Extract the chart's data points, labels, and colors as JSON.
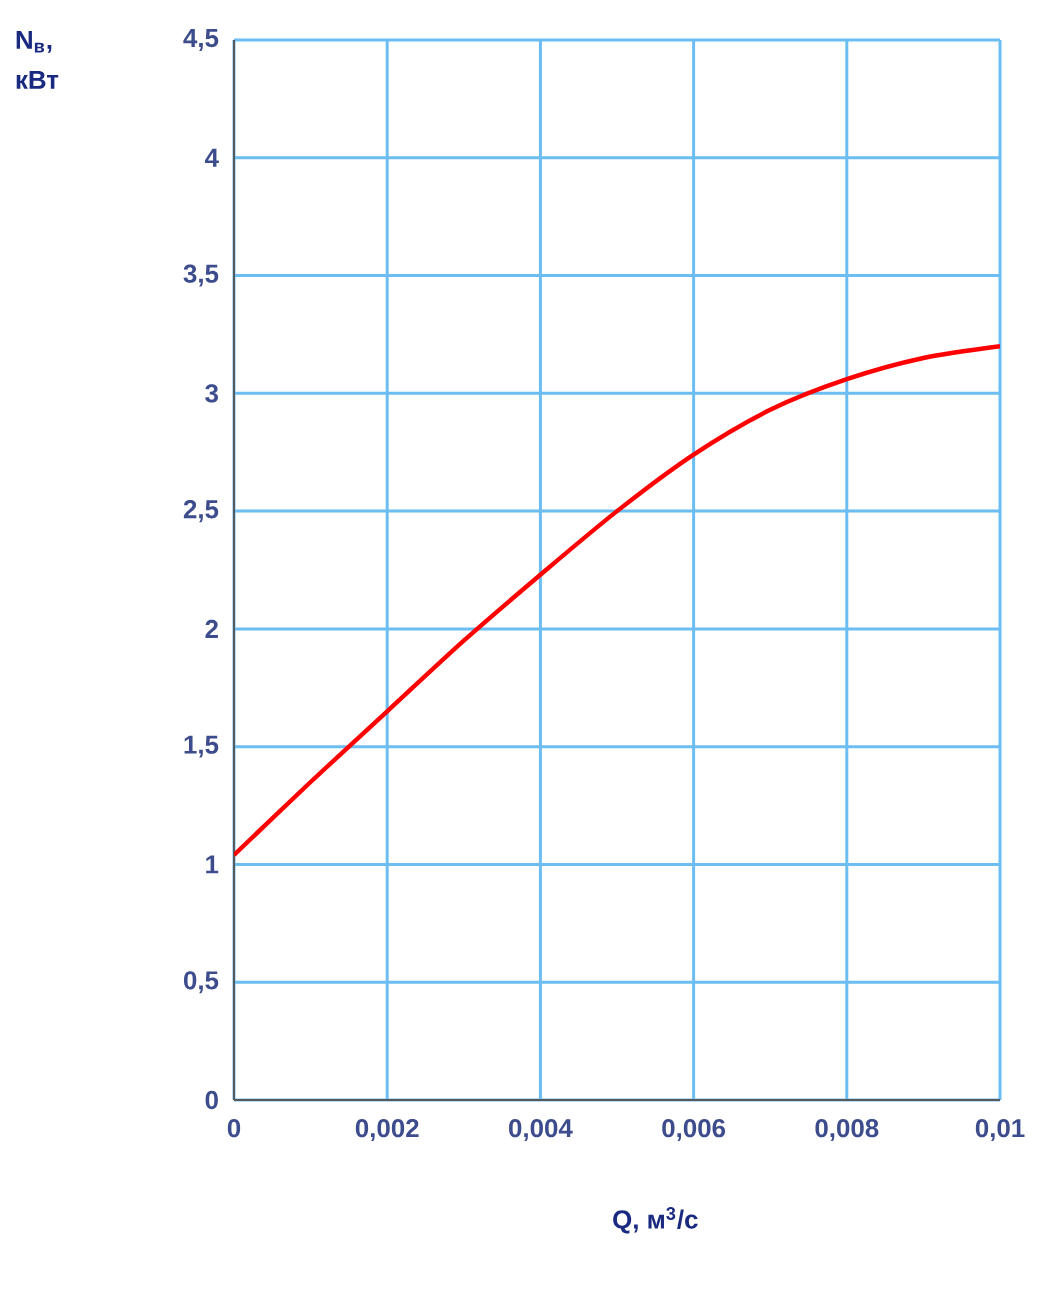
{
  "chart_data": {
    "type": "line",
    "xlabel": "Q, м$^{3}$/с",
    "ylabel": "N$_{в}$, кВт",
    "x": [
      0,
      0.001,
      0.002,
      0.003,
      0.004,
      0.005,
      0.006,
      0.007,
      0.008,
      0.009,
      0.01
    ],
    "series": [
      {
        "color": "#ff0000",
        "values": [
          1.04,
          1.35,
          1.65,
          1.95,
          2.23,
          2.5,
          2.74,
          2.93,
          3.06,
          3.15,
          3.2
        ]
      }
    ],
    "xlim": [
      0,
      0.01
    ],
    "ylim": [
      0,
      4.5
    ],
    "xticks": [
      0,
      {
        "value": 0.002,
        "label": "0,002"
      },
      {
        "value": 0.004,
        "label": "0,004"
      },
      {
        "value": 0.006,
        "label": "0,006"
      },
      {
        "value": 0.008,
        "label": "0,008"
      },
      {
        "value": 0.01,
        "label": "0,01"
      }
    ],
    "yticks": [
      0,
      {
        "value": 0.5,
        "label": "0,5"
      },
      1,
      {
        "value": 1.5,
        "label": "1,5"
      },
      2,
      {
        "value": 2.5,
        "label": "2,5"
      },
      3,
      {
        "value": 3.5,
        "label": "3,5"
      },
      4,
      {
        "value": 4.5,
        "label": "4,5"
      }
    ],
    "grid": true,
    "marker": "none",
    "line_style": "solid"
  }
}
